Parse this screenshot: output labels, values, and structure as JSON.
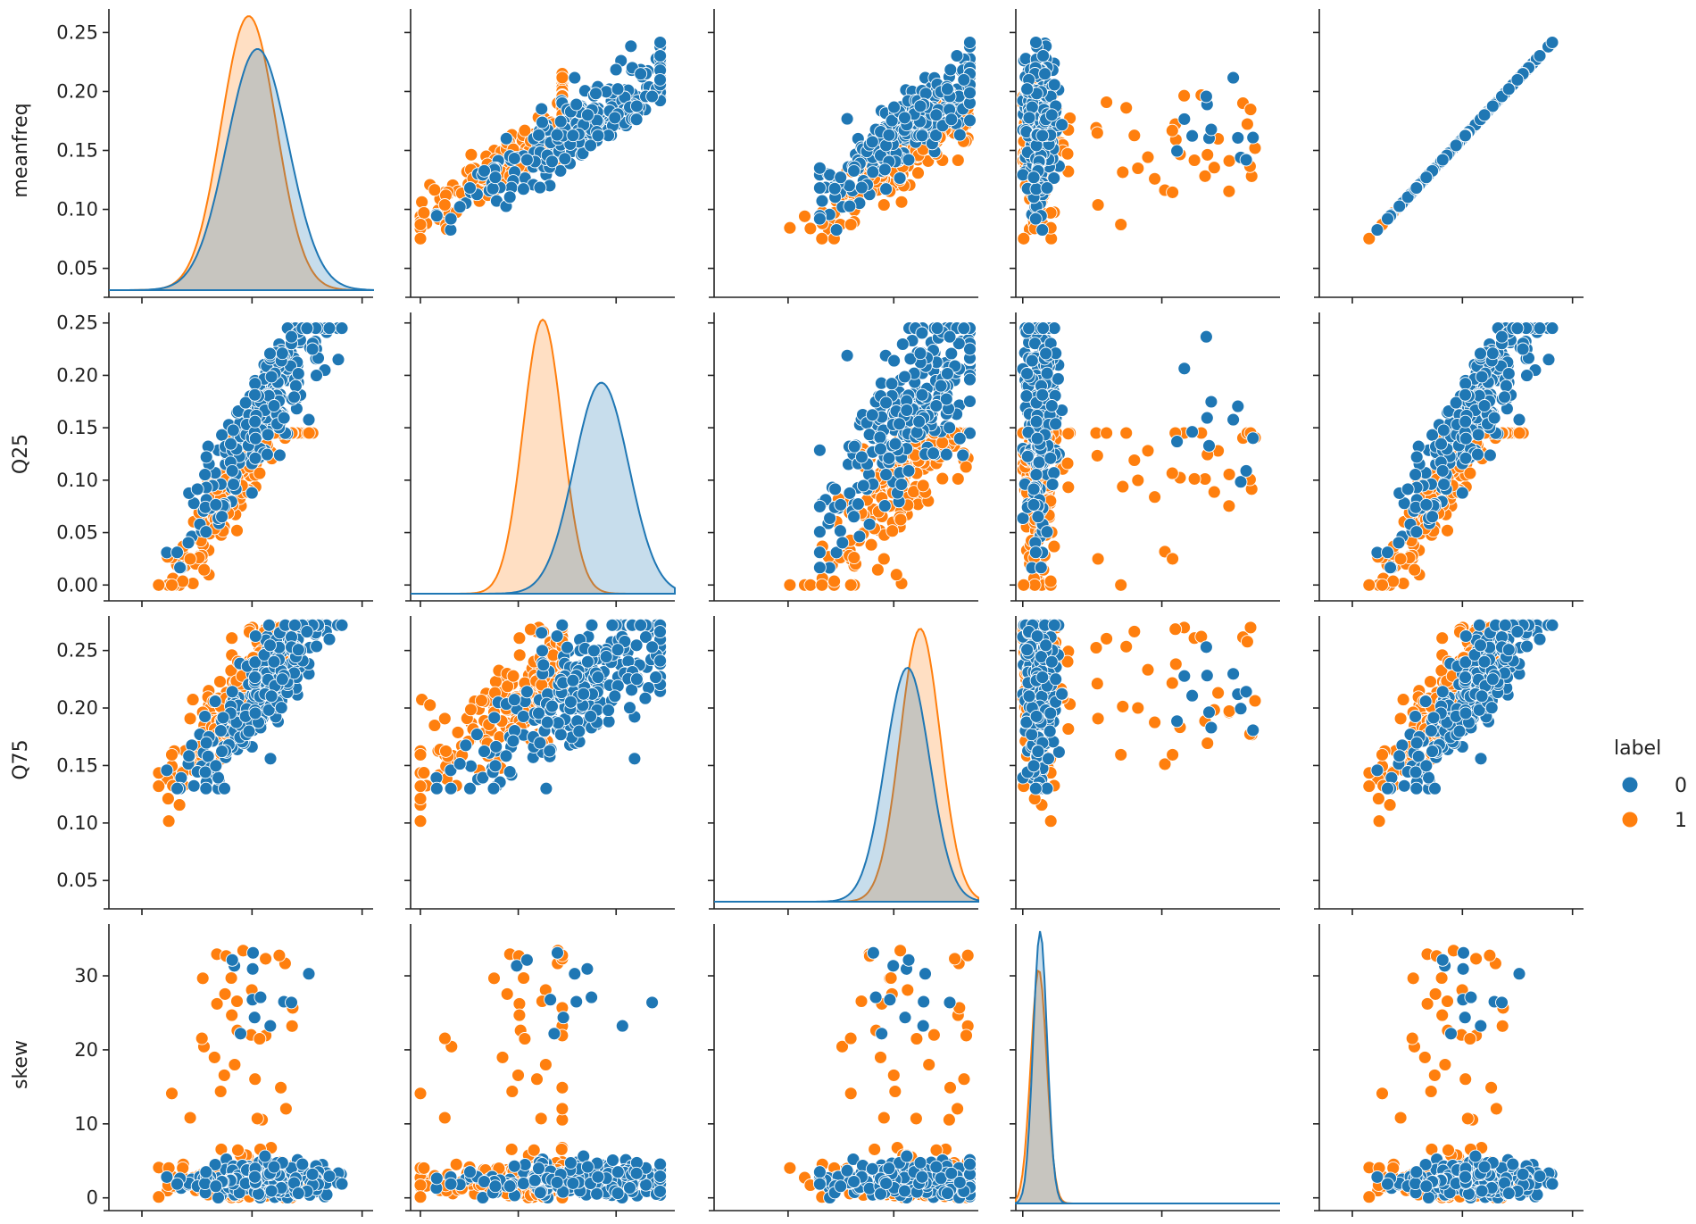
{
  "chart_data": {
    "type": "pairplot",
    "variables": [
      "meanfreq",
      "Q25",
      "Q75",
      "skew",
      "meanfreq"
    ],
    "row_variables": [
      "meanfreq",
      "Q25",
      "Q75",
      "skew"
    ],
    "hue": "label",
    "legend": {
      "title": "label",
      "placement": "right",
      "entries": [
        {
          "label": "0",
          "color": "#1f77b4"
        },
        {
          "label": "1",
          "color": "#ff7f0e"
        }
      ]
    },
    "colors": {
      "0": "#1f77b4",
      "1": "#ff7f0e",
      "diag_overlap": "#b8b4a8"
    },
    "ranges": {
      "meanfreq": [
        0.03,
        0.27
      ],
      "Q25": [
        -0.01,
        0.26
      ],
      "Q75": [
        0.03,
        0.28
      ],
      "skew": [
        -1,
        37
      ]
    },
    "y_ticks": {
      "meanfreq": [
        "0.25",
        "0.20",
        "0.15",
        "0.10",
        "0.05"
      ],
      "Q25": [
        "0.25",
        "0.20",
        "0.15",
        "0.10",
        "0.05",
        "0.00"
      ],
      "Q75": [
        "0.25",
        "0.20",
        "0.15",
        "0.10",
        "0.05"
      ],
      "skew": [
        "30",
        "20",
        "10",
        "0"
      ]
    },
    "y_tick_values": {
      "meanfreq": [
        0.25,
        0.2,
        0.15,
        0.1,
        0.05
      ],
      "Q25": [
        0.25,
        0.2,
        0.15,
        0.1,
        0.05,
        0.0
      ],
      "Q75": [
        0.25,
        0.2,
        0.15,
        0.1,
        0.05
      ],
      "skew": [
        30,
        20,
        10,
        0
      ]
    },
    "x_tick_values": {
      "meanfreq": [
        0.06,
        0.16,
        0.26
      ],
      "Q25": [
        0.0,
        0.1,
        0.2
      ],
      "Q75": [
        0.1,
        0.2,
        0.3
      ],
      "skew": [
        0,
        20,
        40
      ]
    },
    "diag_kde": {
      "meanfreq": {
        "0": {
          "mu": 0.165,
          "sd": 0.028,
          "peak": 0.88
        },
        "1": {
          "mu": 0.157,
          "sd": 0.025,
          "peak": 1.0
        }
      },
      "Q25": {
        "0": {
          "mu": 0.185,
          "sd": 0.028,
          "peak": 0.77
        },
        "1": {
          "mu": 0.125,
          "sd": 0.02,
          "peak": 1.0
        }
      },
      "Q75": {
        "0": {
          "mu": 0.213,
          "sd": 0.021,
          "peak": 0.84
        },
        "1": {
          "mu": 0.225,
          "sd": 0.019,
          "peak": 0.98
        }
      },
      "skew": {
        "0": {
          "mu": 2.5,
          "sd": 1.0,
          "peak": 1.0
        },
        "1": {
          "mu": 2.3,
          "sd": 1.15,
          "peak": 0.86
        }
      }
    },
    "points_per_class": 260
  }
}
